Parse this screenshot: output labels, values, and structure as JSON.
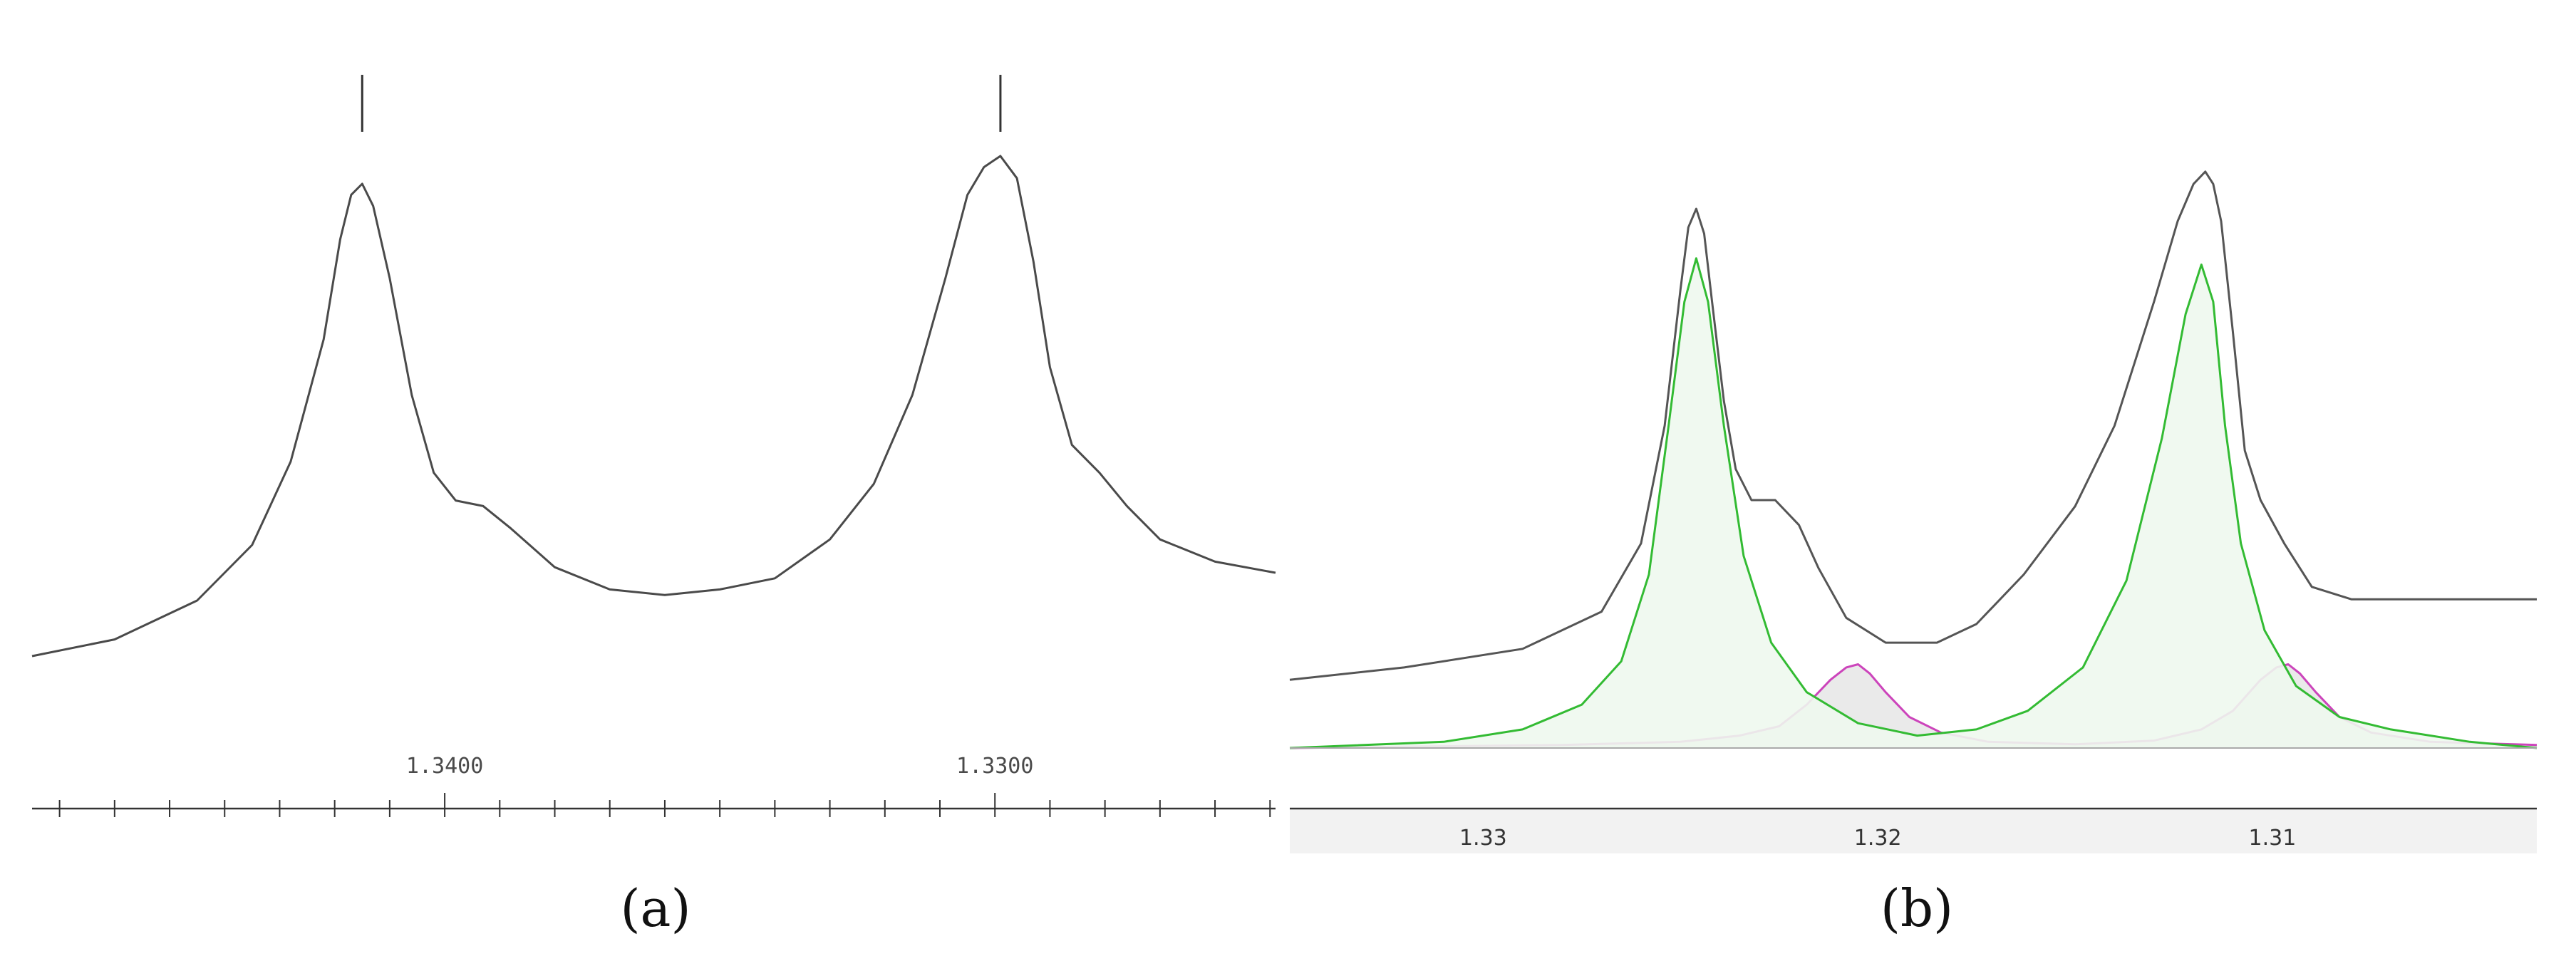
{
  "chart_data": [
    {
      "type": "line",
      "panel_label": "(a)",
      "xlim": [
        1.3475,
        1.3249
      ],
      "x_tick_labels": [
        {
          "value": 1.34,
          "label": "1.3400"
        },
        {
          "value": 1.33,
          "label": "1.3300"
        }
      ],
      "minor_tick_step": 0.001,
      "peak_markers": [
        1.3415,
        1.3299
      ],
      "series": [
        {
          "color": "#4a4a4a",
          "x": [
            1.3475,
            1.346,
            1.3445,
            1.3435,
            1.3428,
            1.3422,
            1.3419,
            1.3417,
            1.3415,
            1.3413,
            1.341,
            1.3406,
            1.3402,
            1.3398,
            1.3393,
            1.3388,
            1.338,
            1.337,
            1.336,
            1.335,
            1.334,
            1.333,
            1.3322,
            1.3315,
            1.3309,
            1.3305,
            1.3302,
            1.3299,
            1.3296,
            1.3293,
            1.329,
            1.3286,
            1.3281,
            1.3276,
            1.327,
            1.326,
            1.3249
          ],
          "y": [
            0.05,
            0.08,
            0.15,
            0.25,
            0.4,
            0.62,
            0.8,
            0.88,
            0.9,
            0.86,
            0.73,
            0.52,
            0.38,
            0.33,
            0.32,
            0.28,
            0.21,
            0.17,
            0.16,
            0.17,
            0.19,
            0.26,
            0.36,
            0.52,
            0.73,
            0.88,
            0.93,
            0.95,
            0.91,
            0.76,
            0.57,
            0.43,
            0.38,
            0.32,
            0.26,
            0.22,
            0.2
          ]
        }
      ]
    },
    {
      "type": "area",
      "panel_label": "(b)",
      "xlim": [
        1.3349,
        1.3033
      ],
      "x_tick_labels": [
        {
          "value": 1.33,
          "label": "1.33"
        },
        {
          "value": 1.32,
          "label": "1.32"
        },
        {
          "value": 1.31,
          "label": "1.31"
        }
      ],
      "series": [
        {
          "role": "spectrum",
          "color": "#555555",
          "x": [
            1.3349,
            1.332,
            1.329,
            1.327,
            1.326,
            1.3254,
            1.325,
            1.3248,
            1.3246,
            1.3244,
            1.3242,
            1.3239,
            1.3236,
            1.3232,
            1.3226,
            1.322,
            1.3215,
            1.3208,
            1.3198,
            1.3185,
            1.3175,
            1.3163,
            1.315,
            1.314,
            1.313,
            1.3124,
            1.312,
            1.3117,
            1.3115,
            1.3113,
            1.311,
            1.3107,
            1.3103,
            1.3097,
            1.309,
            1.308,
            1.306,
            1.3033
          ],
          "y": [
            0.11,
            0.13,
            0.16,
            0.22,
            0.33,
            0.52,
            0.74,
            0.84,
            0.87,
            0.83,
            0.72,
            0.56,
            0.45,
            0.4,
            0.4,
            0.36,
            0.29,
            0.21,
            0.17,
            0.17,
            0.2,
            0.28,
            0.39,
            0.52,
            0.72,
            0.85,
            0.91,
            0.93,
            0.91,
            0.85,
            0.67,
            0.48,
            0.4,
            0.33,
            0.26,
            0.24,
            0.24,
            0.24
          ]
        },
        {
          "role": "fit-main",
          "color": "#33bb33",
          "fill": "#eef8ee",
          "x": [
            1.3349,
            1.331,
            1.329,
            1.3275,
            1.3265,
            1.3258,
            1.3253,
            1.3249,
            1.3246,
            1.3243,
            1.3239,
            1.3234,
            1.3227,
            1.3218,
            1.3205,
            1.319,
            1.3175,
            1.3162,
            1.3148,
            1.3137,
            1.3128,
            1.3122,
            1.3118,
            1.3115,
            1.3112,
            1.3108,
            1.3102,
            1.3094,
            1.3083,
            1.307,
            1.305,
            1.3033
          ],
          "y": [
            0.0,
            0.01,
            0.03,
            0.07,
            0.14,
            0.28,
            0.52,
            0.72,
            0.79,
            0.72,
            0.52,
            0.31,
            0.17,
            0.09,
            0.04,
            0.02,
            0.03,
            0.06,
            0.13,
            0.27,
            0.5,
            0.7,
            0.78,
            0.72,
            0.52,
            0.33,
            0.19,
            0.1,
            0.05,
            0.03,
            0.01,
            0.0
          ]
        },
        {
          "role": "fit-minor",
          "color": "#cc44bb",
          "fill": "#e8e8e8",
          "x": [
            1.3349,
            1.328,
            1.325,
            1.3235,
            1.3225,
            1.3218,
            1.3212,
            1.3208,
            1.3205,
            1.3202,
            1.3198,
            1.3192,
            1.3184,
            1.3172,
            1.315,
            1.313,
            1.3118,
            1.311,
            1.3103,
            1.3099,
            1.3096,
            1.3093,
            1.3089,
            1.3083,
            1.3075,
            1.306,
            1.3033
          ],
          "y": [
            0.0,
            0.005,
            0.01,
            0.02,
            0.035,
            0.07,
            0.11,
            0.13,
            0.135,
            0.12,
            0.09,
            0.05,
            0.025,
            0.01,
            0.006,
            0.012,
            0.03,
            0.06,
            0.11,
            0.13,
            0.135,
            0.12,
            0.09,
            0.05,
            0.025,
            0.01,
            0.005
          ]
        }
      ]
    }
  ]
}
